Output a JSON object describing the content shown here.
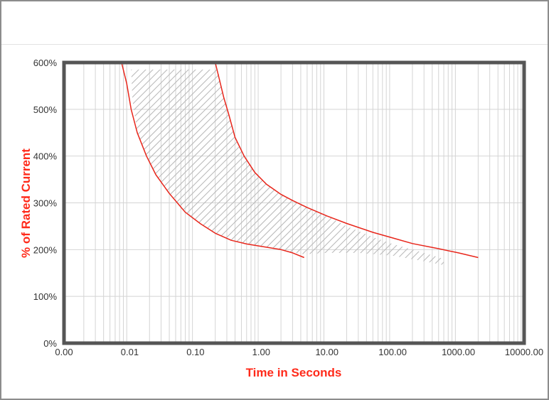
{
  "chart_data": {
    "type": "line",
    "title": "",
    "xlabel": "Time in Seconds",
    "ylabel": "% of Rated Current",
    "x_scale": "log",
    "xlim": [
      0.001,
      10000
    ],
    "ylim": [
      0,
      600
    ],
    "x_tick_values": [
      0.001,
      0.01,
      0.1,
      1,
      10,
      100,
      1000,
      10000
    ],
    "x_tick_labels": [
      "0.00",
      "0.01",
      "0.10",
      "1.00",
      "10.00",
      "100.00",
      "1000.00",
      "10000.00"
    ],
    "y_tick_values": [
      0,
      100,
      200,
      300,
      400,
      500,
      600
    ],
    "y_tick_labels": [
      "0%",
      "100%",
      "200%",
      "300%",
      "400%",
      "500%",
      "600%"
    ],
    "grid": true,
    "legend": "none",
    "series": [
      {
        "color": "#e8261b",
        "x": [
          0.0075,
          0.009,
          0.0105,
          0.013,
          0.018,
          0.025,
          0.04,
          0.07,
          0.12,
          0.2,
          0.35,
          0.6,
          1.0,
          2.0,
          3.0,
          4.5
        ],
        "y": [
          600,
          555,
          500,
          450,
          400,
          360,
          320,
          280,
          255,
          235,
          220,
          212,
          207,
          200,
          193,
          183
        ]
      },
      {
        "color": "#e8261b",
        "x": [
          0.2,
          0.23,
          0.27,
          0.32,
          0.4,
          0.55,
          0.8,
          1.2,
          2.0,
          3.0,
          5.0,
          10,
          20,
          50,
          100,
          200,
          500,
          1000,
          2000
        ],
        "y": [
          600,
          565,
          525,
          490,
          440,
          400,
          365,
          340,
          318,
          305,
          290,
          272,
          256,
          237,
          225,
          213,
          202,
          193,
          183
        ]
      }
    ],
    "shaded_band": {
      "pattern": "hatched",
      "color": "#b8b8b8",
      "upper_x": [
        0.22,
        0.27,
        0.32,
        0.4,
        0.55,
        0.8,
        1.2,
        2.0,
        3.0,
        5.0,
        10,
        20,
        50,
        100,
        200,
        400,
        600
      ],
      "upper_y": [
        585,
        525,
        490,
        440,
        400,
        365,
        340,
        318,
        305,
        290,
        272,
        250,
        227,
        212,
        200,
        188,
        180
      ],
      "lower_x": [
        600,
        300,
        100,
        30,
        10,
        4.5,
        3.0,
        2.0,
        1.0,
        0.6,
        0.35,
        0.2,
        0.12,
        0.07,
        0.04,
        0.025,
        0.018,
        0.013,
        0.011,
        0.0105
      ],
      "lower_y": [
        167,
        175,
        187,
        193,
        193,
        190,
        194,
        200,
        207,
        212,
        220,
        235,
        255,
        280,
        320,
        360,
        400,
        450,
        520,
        585
      ]
    }
  }
}
